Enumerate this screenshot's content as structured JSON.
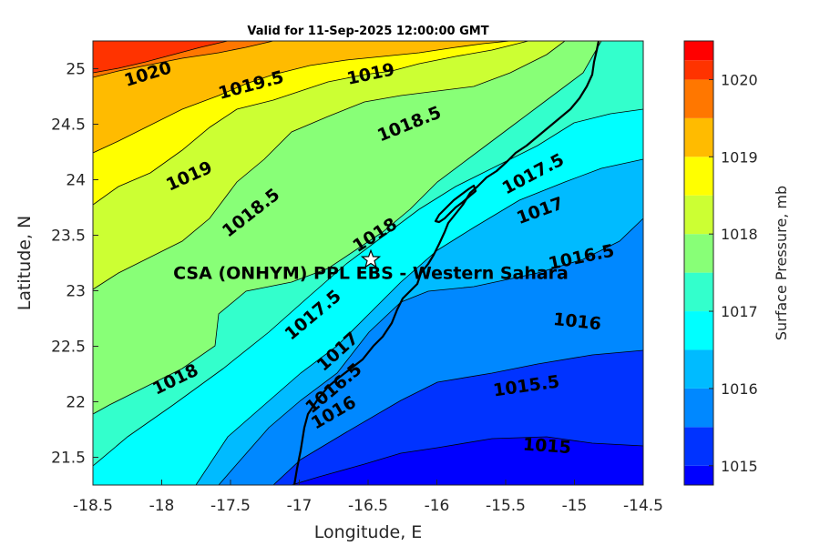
{
  "title": "Valid for 11-Sep-2025 12:00:00 GMT",
  "map": {
    "xlabel": "Longitude, E",
    "ylabel": "Latitude, N",
    "xlim": [
      -18.5,
      -14.5
    ],
    "ylim": [
      21.25,
      25.25
    ],
    "xticks": [
      "-18.5",
      "-18",
      "-17.5",
      "-17",
      "-16.5",
      "-16",
      "-15.5",
      "-15",
      "-14.5"
    ],
    "yticks": [
      "21.5",
      "22",
      "22.5",
      "23",
      "23.5",
      "24",
      "24.5",
      "25"
    ],
    "site": {
      "label": "CSA (ONHYM) PPL EBS - Western Sahara",
      "lon": -16.48,
      "lat": 23.28,
      "marker": "star-icon"
    },
    "contour_labels": [
      {
        "text": "1020",
        "lon": -18.1,
        "lat": 24.95
      },
      {
        "text": "1019.5",
        "lon": -17.35,
        "lat": 24.85
      },
      {
        "text": "1019",
        "lon": -16.48,
        "lat": 24.95
      },
      {
        "text": "1018.5",
        "lon": -16.2,
        "lat": 24.5
      },
      {
        "text": "1019",
        "lon": -17.8,
        "lat": 24.03
      },
      {
        "text": "1018.5",
        "lon": -17.35,
        "lat": 23.7
      },
      {
        "text": "1018",
        "lon": -16.45,
        "lat": 23.5
      },
      {
        "text": "1017.5",
        "lon": -15.3,
        "lat": 24.05
      },
      {
        "text": "1017",
        "lon": -15.25,
        "lat": 23.72
      },
      {
        "text": "1016.5",
        "lon": -14.95,
        "lat": 23.3
      },
      {
        "text": "1016",
        "lon": -14.98,
        "lat": 22.72
      },
      {
        "text": "1017.5",
        "lon": -16.9,
        "lat": 22.78
      },
      {
        "text": "1017",
        "lon": -16.72,
        "lat": 22.45
      },
      {
        "text": "1018",
        "lon": -17.9,
        "lat": 22.2
      },
      {
        "text": "1016.5",
        "lon": -16.75,
        "lat": 22.12
      },
      {
        "text": "1016",
        "lon": -16.75,
        "lat": 21.9
      },
      {
        "text": "1015.5",
        "lon": -15.35,
        "lat": 22.14
      },
      {
        "text": "1015",
        "lon": -15.2,
        "lat": 21.6
      }
    ]
  },
  "colorbar": {
    "label": "Surface Pressure, mb",
    "min": 1014.75,
    "max": 1020.25,
    "tick_values": [
      1015,
      1016,
      1017,
      1018,
      1019,
      1020
    ],
    "ticks": [
      "1015",
      "1016",
      "1017",
      "1018",
      "1019",
      "1020"
    ],
    "levels": [
      {
        "low": 1014.75,
        "high": 1015.0,
        "color": "#0000ff"
      },
      {
        "low": 1015.0,
        "high": 1015.5,
        "color": "#0033ff"
      },
      {
        "low": 1015.5,
        "high": 1016.0,
        "color": "#0088ff"
      },
      {
        "low": 1016.0,
        "high": 1016.5,
        "color": "#00bbff"
      },
      {
        "low": 1016.5,
        "high": 1017.0,
        "color": "#00ffff"
      },
      {
        "low": 1017.0,
        "high": 1017.5,
        "color": "#33ffcc"
      },
      {
        "low": 1017.5,
        "high": 1018.0,
        "color": "#88ff77"
      },
      {
        "low": 1018.0,
        "high": 1018.5,
        "color": "#ccff33"
      },
      {
        "low": 1018.5,
        "high": 1019.0,
        "color": "#ffff00"
      },
      {
        "low": 1019.0,
        "high": 1019.5,
        "color": "#ffbb00"
      },
      {
        "low": 1019.5,
        "high": 1020.0,
        "color": "#ff7700"
      },
      {
        "low": 1020.0,
        "high": 1020.25,
        "color": "#ff3300"
      },
      {
        "low": 1020.25,
        "high": 1020.5,
        "color": "#ff0000"
      }
    ]
  }
}
